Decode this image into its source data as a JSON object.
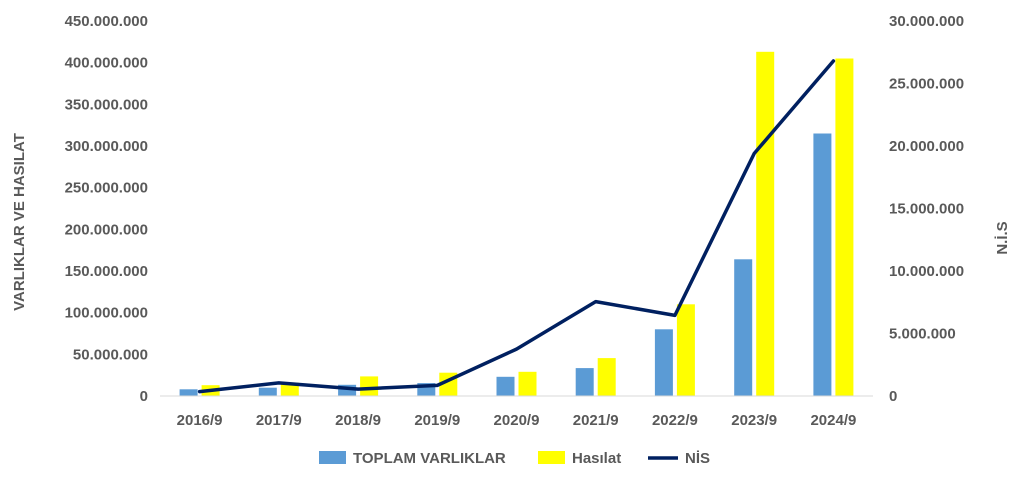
{
  "chart_data": {
    "type": "bar",
    "categories": [
      "2016/9",
      "2017/9",
      "2018/9",
      "2019/9",
      "2020/9",
      "2021/9",
      "2022/9",
      "2023/9",
      "2024/9"
    ],
    "series": [
      {
        "name": "TOPLAM VARLIKLAR",
        "kind": "bar",
        "axis": "left",
        "color": "#5B9BD5",
        "values": [
          8000000,
          10000000,
          13500000,
          15500000,
          23000000,
          33500000,
          80000000,
          164000000,
          315000000
        ]
      },
      {
        "name": "Hasılat",
        "kind": "bar",
        "axis": "left",
        "color": "#FFFF00",
        "values": [
          13000000,
          16000000,
          23500000,
          28000000,
          29000000,
          45500000,
          110000000,
          413000000,
          405000000
        ]
      },
      {
        "name": "NİS",
        "kind": "line",
        "axis": "right",
        "color": "#002060",
        "values": [
          350000,
          1050000,
          550000,
          850000,
          3750000,
          7550000,
          6450000,
          19400000,
          26800000
        ]
      }
    ],
    "y_left": {
      "label": "VARLIKLAR VE HASILAT",
      "ylim": [
        0,
        450000000
      ],
      "ticks": [
        "0",
        "50.000.000",
        "100.000.000",
        "150.000.000",
        "200.000.000",
        "250.000.000",
        "300.000.000",
        "350.000.000",
        "400.000.000",
        "450.000.000"
      ]
    },
    "y_right": {
      "label": "N.İ.S",
      "ylim": [
        0,
        30000000
      ],
      "ticks": [
        "0",
        "5.000.000",
        "10.000.000",
        "15.000.000",
        "20.000.000",
        "25.000.000",
        "30.000.000"
      ]
    },
    "legend_position": "bottom",
    "grid": false
  }
}
